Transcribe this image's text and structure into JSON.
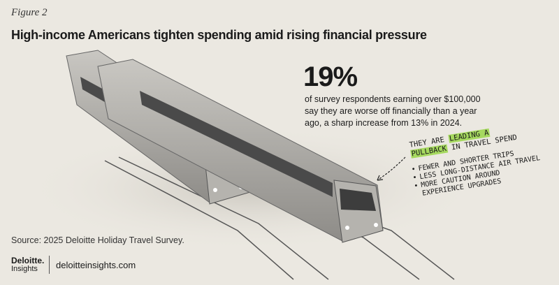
{
  "figure_label": "Figure 2",
  "title": "High-income Americans tighten spending amid rising financial pressure",
  "stat": {
    "value": "19%",
    "description_lines": [
      "of survey respondents earning over $100,000",
      "say they are worse off financially than a year",
      "ago, a sharp increase from 13% in 2024."
    ]
  },
  "annotation": {
    "lead": "THEY ARE",
    "highlight_1": "LEADING A",
    "highlight_2": "PULLBACK",
    "tail": "IN TRAVEL SPEND",
    "bullets": [
      "FEWER AND SHORTER TRIPS",
      "LESS LONG-DISTANCE AIR TRAVEL",
      "MORE CAUTION AROUND",
      "EXPERIENCE UPGRADES"
    ]
  },
  "source": "Source: 2025 Deloitte Holiday Travel Survey.",
  "brand": {
    "name": "Deloitte.",
    "sub": "Insights",
    "url": "deloitteinsights.com"
  }
}
